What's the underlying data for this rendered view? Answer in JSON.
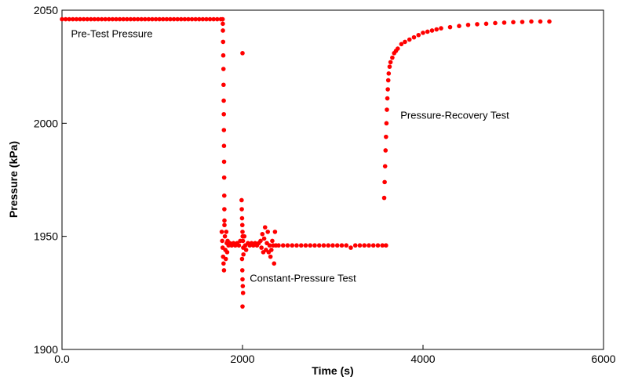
{
  "chart_data": {
    "type": "scatter",
    "title": "",
    "xlabel": "Time  (s)",
    "ylabel": "Pressure  (kPa)",
    "xlim": [
      0,
      6000
    ],
    "ylim": [
      1900,
      2050
    ],
    "x_ticks": [
      {
        "value": 0,
        "label": "0.0"
      },
      {
        "value": 2000,
        "label": "2000"
      },
      {
        "value": 4000,
        "label": "4000"
      },
      {
        "value": 6000,
        "label": "6000"
      }
    ],
    "y_ticks": [
      {
        "value": 1900,
        "label": "1900"
      },
      {
        "value": 1950,
        "label": "1950"
      },
      {
        "value": 2000,
        "label": "2000"
      },
      {
        "value": 2050,
        "label": "2050"
      }
    ],
    "grid": false,
    "legend": "none",
    "marker_color": "#ff0000",
    "annotations": [
      {
        "text": "Pre-Test  Pressure",
        "x": 100,
        "y": 2038
      },
      {
        "text": "Pressure-Recovery  Test",
        "x": 3750,
        "y": 2002
      },
      {
        "text": "Constant-Pressure  Test",
        "x": 2080,
        "y": 1930
      }
    ],
    "series": [
      {
        "points": [
          [
            0,
            2046
          ],
          [
            40,
            2046
          ],
          [
            80,
            2046
          ],
          [
            120,
            2046
          ],
          [
            160,
            2046
          ],
          [
            200,
            2046
          ],
          [
            240,
            2046
          ],
          [
            280,
            2046
          ],
          [
            320,
            2046
          ],
          [
            360,
            2046
          ],
          [
            400,
            2046
          ],
          [
            440,
            2046
          ],
          [
            480,
            2046
          ],
          [
            520,
            2046
          ],
          [
            560,
            2046
          ],
          [
            600,
            2046
          ],
          [
            640,
            2046
          ],
          [
            680,
            2046
          ],
          [
            720,
            2046
          ],
          [
            760,
            2046
          ],
          [
            800,
            2046
          ],
          [
            840,
            2046
          ],
          [
            880,
            2046
          ],
          [
            920,
            2046
          ],
          [
            960,
            2046
          ],
          [
            1000,
            2046
          ],
          [
            1040,
            2046
          ],
          [
            1080,
            2046
          ],
          [
            1120,
            2046
          ],
          [
            1160,
            2046
          ],
          [
            1200,
            2046
          ],
          [
            1240,
            2046
          ],
          [
            1280,
            2046
          ],
          [
            1320,
            2046
          ],
          [
            1360,
            2046
          ],
          [
            1400,
            2046
          ],
          [
            1440,
            2046
          ],
          [
            1480,
            2046
          ],
          [
            1520,
            2046
          ],
          [
            1560,
            2046
          ],
          [
            1600,
            2046
          ],
          [
            1640,
            2046
          ],
          [
            1680,
            2046
          ],
          [
            1720,
            2046
          ],
          [
            1760,
            2046
          ],
          [
            1780,
            2046
          ],
          [
            1782,
            2044
          ],
          [
            1783,
            2041
          ],
          [
            1785,
            2036
          ],
          [
            1787,
            2030
          ],
          [
            1789,
            2024
          ],
          [
            1790,
            2017
          ],
          [
            1792,
            2010
          ],
          [
            1793,
            2004
          ],
          [
            1794,
            1997
          ],
          [
            1795,
            1990
          ],
          [
            1796,
            1983
          ],
          [
            1797,
            1976
          ],
          [
            1798,
            1968
          ],
          [
            1799,
            1962
          ],
          [
            1800,
            1957
          ],
          [
            1770,
            1952
          ],
          [
            1775,
            1948
          ],
          [
            1780,
            1945
          ],
          [
            1785,
            1941
          ],
          [
            1790,
            1938
          ],
          [
            1795,
            1935
          ],
          [
            1800,
            1955
          ],
          [
            1805,
            1950
          ],
          [
            1810,
            1944
          ],
          [
            1815,
            1940
          ],
          [
            1820,
            1952
          ],
          [
            1825,
            1947
          ],
          [
            1830,
            1943
          ],
          [
            1835,
            1948
          ],
          [
            1845,
            1946
          ],
          [
            1860,
            1947
          ],
          [
            1880,
            1946
          ],
          [
            1900,
            1947
          ],
          [
            1920,
            1946
          ],
          [
            1940,
            1947
          ],
          [
            1960,
            1946
          ],
          [
            1975,
            1948
          ],
          [
            1990,
            1966
          ],
          [
            1992,
            1962
          ],
          [
            1995,
            1958
          ],
          [
            1998,
            1955
          ],
          [
            2000,
            1952
          ],
          [
            2002,
            1950
          ],
          [
            2005,
            1948
          ],
          [
            2008,
            1945
          ],
          [
            2010,
            1942
          ],
          [
            1995,
            1940
          ],
          [
            1998,
            1935
          ],
          [
            2000,
            1931
          ],
          [
            2003,
            1928
          ],
          [
            2006,
            1925
          ],
          [
            2000,
            1919
          ],
          [
            2000,
            2031
          ],
          [
            2020,
            1950
          ],
          [
            2030,
            1946
          ],
          [
            2040,
            1944
          ],
          [
            2060,
            1947
          ],
          [
            2080,
            1946
          ],
          [
            2100,
            1947
          ],
          [
            2120,
            1946
          ],
          [
            2140,
            1947
          ],
          [
            2160,
            1946
          ],
          [
            2180,
            1947
          ],
          [
            2200,
            1948
          ],
          [
            2210,
            1945
          ],
          [
            2220,
            1951
          ],
          [
            2230,
            1943
          ],
          [
            2240,
            1949
          ],
          [
            2250,
            1954
          ],
          [
            2260,
            1944
          ],
          [
            2270,
            1947
          ],
          [
            2280,
            1952
          ],
          [
            2290,
            1943
          ],
          [
            2300,
            1946
          ],
          [
            2310,
            1941
          ],
          [
            2320,
            1944
          ],
          [
            2330,
            1948
          ],
          [
            2340,
            1946
          ],
          [
            2350,
            1938
          ],
          [
            2360,
            1952
          ],
          [
            2370,
            1946
          ],
          [
            2400,
            1946
          ],
          [
            2450,
            1946
          ],
          [
            2500,
            1946
          ],
          [
            2550,
            1946
          ],
          [
            2600,
            1946
          ],
          [
            2650,
            1946
          ],
          [
            2700,
            1946
          ],
          [
            2750,
            1946
          ],
          [
            2800,
            1946
          ],
          [
            2850,
            1946
          ],
          [
            2900,
            1946
          ],
          [
            2950,
            1946
          ],
          [
            3000,
            1946
          ],
          [
            3050,
            1946
          ],
          [
            3100,
            1946
          ],
          [
            3150,
            1946
          ],
          [
            3200,
            1945
          ],
          [
            3250,
            1946
          ],
          [
            3300,
            1946
          ],
          [
            3350,
            1946
          ],
          [
            3400,
            1946
          ],
          [
            3450,
            1946
          ],
          [
            3500,
            1946
          ],
          [
            3550,
            1946
          ],
          [
            3590,
            1946
          ],
          [
            3570,
            1967
          ],
          [
            3575,
            1974
          ],
          [
            3580,
            1981
          ],
          [
            3585,
            1988
          ],
          [
            3590,
            1994
          ],
          [
            3595,
            2000
          ],
          [
            3600,
            2006
          ],
          [
            3605,
            2011
          ],
          [
            3610,
            2015
          ],
          [
            3615,
            2019
          ],
          [
            3620,
            2022
          ],
          [
            3630,
            2025
          ],
          [
            3640,
            2027
          ],
          [
            3660,
            2029
          ],
          [
            3680,
            2031
          ],
          [
            3700,
            2032
          ],
          [
            3720,
            2033
          ],
          [
            3760,
            2035
          ],
          [
            3800,
            2036
          ],
          [
            3850,
            2037
          ],
          [
            3900,
            2038
          ],
          [
            3950,
            2039
          ],
          [
            4000,
            2040
          ],
          [
            4050,
            2040.5
          ],
          [
            4100,
            2041
          ],
          [
            4150,
            2041.5
          ],
          [
            4200,
            2042
          ],
          [
            4300,
            2042.5
          ],
          [
            4400,
            2043
          ],
          [
            4500,
            2043.5
          ],
          [
            4600,
            2043.8
          ],
          [
            4700,
            2044
          ],
          [
            4800,
            2044.3
          ],
          [
            4900,
            2044.5
          ],
          [
            5000,
            2044.7
          ],
          [
            5100,
            2044.8
          ],
          [
            5200,
            2045
          ],
          [
            5300,
            2045
          ],
          [
            5400,
            2045
          ]
        ]
      }
    ]
  }
}
